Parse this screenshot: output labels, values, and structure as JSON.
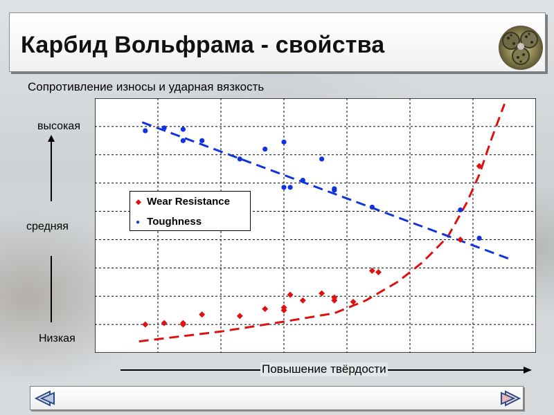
{
  "slide": {
    "title": "Карбид Вольфрама - свойства"
  },
  "chart_data": {
    "type": "scatter",
    "title": "Сопротивление износы и ударная вязкость",
    "xlabel": "Повышение твёрдости",
    "ylabels": {
      "high": "высокая",
      "mid": "средняя",
      "low": "Низкая"
    },
    "xlim": [
      0,
      7
    ],
    "ylim": [
      0,
      9
    ],
    "grid": true,
    "legend_position": "left-middle",
    "series": [
      {
        "name": "Wear Resistance",
        "marker": "diamond",
        "color": "#dd1111",
        "points": [
          [
            0.8,
            1.0
          ],
          [
            1.1,
            1.05
          ],
          [
            1.4,
            1.0
          ],
          [
            1.4,
            1.05
          ],
          [
            1.7,
            1.35
          ],
          [
            2.3,
            1.3
          ],
          [
            2.7,
            1.55
          ],
          [
            3.0,
            1.5
          ],
          [
            3.0,
            1.6
          ],
          [
            3.1,
            2.05
          ],
          [
            3.3,
            1.85
          ],
          [
            3.6,
            2.1
          ],
          [
            3.8,
            1.95
          ],
          [
            3.8,
            1.85
          ],
          [
            4.1,
            1.8
          ],
          [
            4.4,
            2.9
          ],
          [
            4.5,
            2.85
          ],
          [
            5.8,
            4.0
          ],
          [
            6.1,
            6.6
          ]
        ]
      },
      {
        "name": "Toughness",
        "marker": "circle",
        "color": "#1133dd",
        "points": [
          [
            0.8,
            7.85
          ],
          [
            1.1,
            7.95
          ],
          [
            1.4,
            7.5
          ],
          [
            1.4,
            7.9
          ],
          [
            1.7,
            7.5
          ],
          [
            2.3,
            6.85
          ],
          [
            2.7,
            7.2
          ],
          [
            3.0,
            5.85
          ],
          [
            3.0,
            7.45
          ],
          [
            3.1,
            5.85
          ],
          [
            3.3,
            6.1
          ],
          [
            3.6,
            6.85
          ],
          [
            3.8,
            5.75
          ],
          [
            3.8,
            5.8
          ],
          [
            4.4,
            5.15
          ],
          [
            5.8,
            5.05
          ],
          [
            6.1,
            4.05
          ]
        ]
      }
    ],
    "trendlines": [
      {
        "series": "Wear Resistance",
        "color": "#dd1111",
        "style": "dashed",
        "shape": "exponential",
        "points": [
          [
            0.7,
            0.4
          ],
          [
            2,
            0.75
          ],
          [
            3,
            1.1
          ],
          [
            3.8,
            1.4
          ],
          [
            4.3,
            1.85
          ],
          [
            4.8,
            2.5
          ],
          [
            5.2,
            3.2
          ],
          [
            5.6,
            4.1
          ],
          [
            5.9,
            5.3
          ],
          [
            6.1,
            6.3
          ],
          [
            6.3,
            7.6
          ],
          [
            6.5,
            8.8
          ]
        ]
      },
      {
        "series": "Toughness",
        "color": "#1133dd",
        "style": "dashed",
        "shape": "linear",
        "points": [
          [
            0.75,
            8.15
          ],
          [
            6.6,
            3.3
          ]
        ]
      }
    ]
  }
}
